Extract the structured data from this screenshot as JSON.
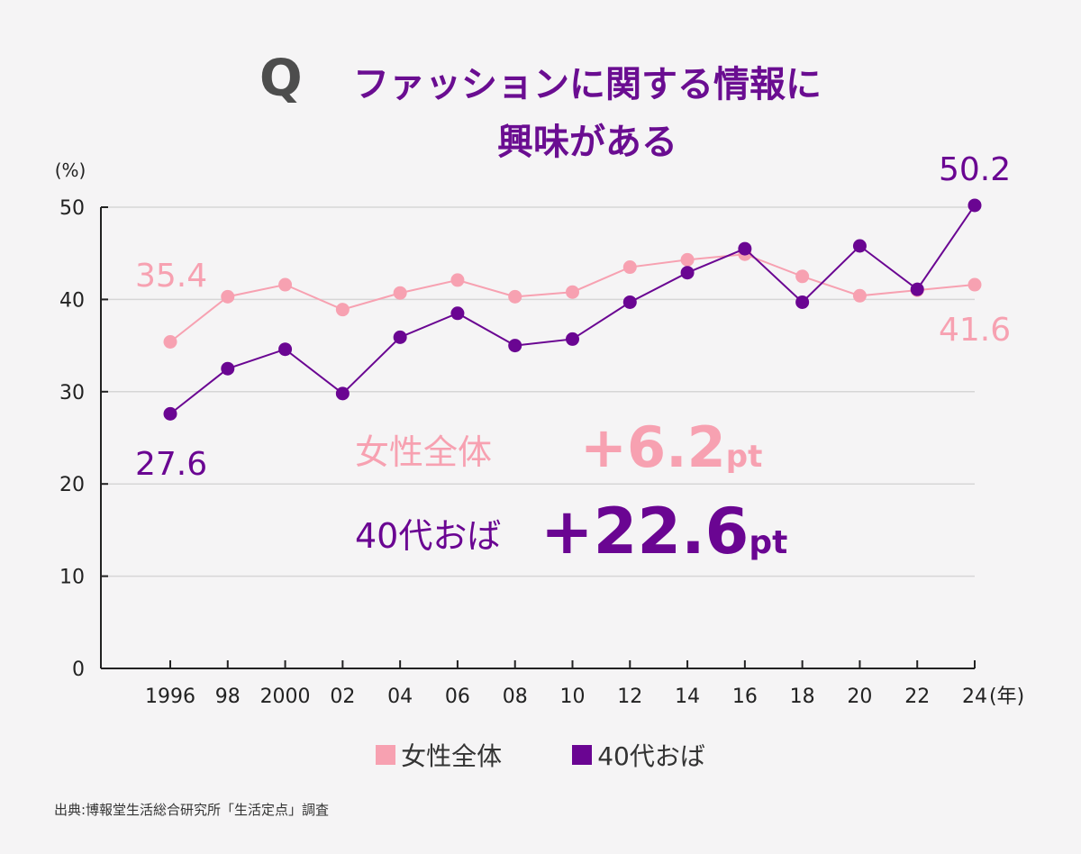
{
  "title": {
    "q": "Q",
    "line1": "ファッションに関する情報に",
    "line2": "興味がある"
  },
  "source": "出典:博報堂生活総合研究所「生活定点」調査",
  "legend": [
    {
      "label": "女性全体",
      "color": "#f7a1b1"
    },
    {
      "label": "40代おば",
      "color": "#6a0592"
    }
  ],
  "annotations": {
    "women_label": "女性全体",
    "women_change": "+6.2",
    "women_unit": "pt",
    "forties_label": "40代おば",
    "forties_change": "+22.6",
    "forties_unit": "pt"
  },
  "chart_data": {
    "type": "line",
    "ylabel": "(%)",
    "xlabel": "(年)",
    "ylim": [
      0,
      50
    ],
    "yticks": [
      0,
      10,
      20,
      30,
      40,
      50
    ],
    "x": [
      1996,
      1998,
      2000,
      2002,
      2004,
      2006,
      2008,
      2010,
      2012,
      2014,
      2016,
      2018,
      2020,
      2022,
      2024
    ],
    "x_tick_labels": [
      "1996",
      "98",
      "2000",
      "02",
      "04",
      "06",
      "08",
      "10",
      "12",
      "14",
      "16",
      "18",
      "20",
      "22",
      "24"
    ],
    "grid": true,
    "series": [
      {
        "name": "女性全体",
        "color": "#f7a1b1",
        "values": [
          35.4,
          40.3,
          41.6,
          38.9,
          40.7,
          42.1,
          40.3,
          40.8,
          43.5,
          44.3,
          44.9,
          42.5,
          40.4,
          41.0,
          41.6
        ],
        "labels": {
          "first": "35.4",
          "last": "41.6"
        }
      },
      {
        "name": "40代おば",
        "color": "#6a0592",
        "values": [
          27.6,
          32.5,
          34.6,
          29.8,
          35.9,
          38.5,
          35.0,
          35.7,
          39.7,
          42.9,
          45.5,
          39.7,
          45.8,
          41.1,
          50.2
        ],
        "labels": {
          "first": "27.6",
          "last": "50.2"
        }
      }
    ]
  }
}
